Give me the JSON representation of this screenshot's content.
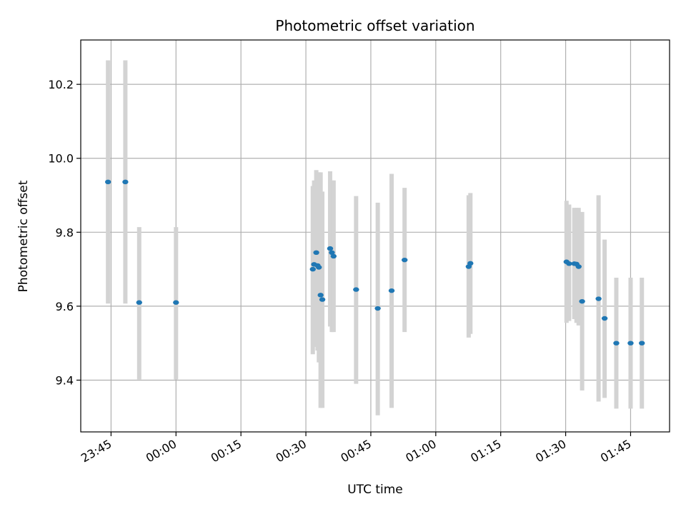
{
  "chart_data": {
    "type": "scatter",
    "title": "Photometric offset variation",
    "xlabel": "UTC time",
    "ylabel": "Photometric offset",
    "x_axis": {
      "unit": "minutes relative to 00:00 UTC",
      "range": [
        -22,
        114
      ],
      "ticks": [
        {
          "value": -15,
          "label": "23:45"
        },
        {
          "value": 0,
          "label": "00:00"
        },
        {
          "value": 15,
          "label": "00:15"
        },
        {
          "value": 30,
          "label": "00:30"
        },
        {
          "value": 45,
          "label": "00:45"
        },
        {
          "value": 60,
          "label": "01:00"
        },
        {
          "value": 75,
          "label": "01:15"
        },
        {
          "value": 90,
          "label": "01:30"
        },
        {
          "value": 105,
          "label": "01:45"
        }
      ]
    },
    "y_axis": {
      "range": [
        9.26,
        10.32
      ],
      "ticks": [
        {
          "value": 9.4,
          "label": "9.4"
        },
        {
          "value": 9.6,
          "label": "9.6"
        },
        {
          "value": 9.8,
          "label": "9.8"
        },
        {
          "value": 10.0,
          "label": "10.0"
        },
        {
          "value": 10.2,
          "label": "10.2"
        }
      ]
    },
    "grid": true,
    "point_color": "#1f77b4",
    "errorbar_color": "#d3d3d3",
    "points": [
      {
        "t": -15.7,
        "y": 9.936,
        "lo": 9.607,
        "hi": 10.265
      },
      {
        "t": -11.7,
        "y": 9.936,
        "lo": 9.607,
        "hi": 10.265
      },
      {
        "t": -8.5,
        "y": 9.61,
        "lo": 9.402,
        "hi": 9.814
      },
      {
        "t": 0.0,
        "y": 9.61,
        "lo": 9.402,
        "hi": 9.814
      },
      {
        "t": 31.6,
        "y": 9.7,
        "lo": 9.47,
        "hi": 9.925
      },
      {
        "t": 31.9,
        "y": 9.713,
        "lo": 9.49,
        "hi": 9.94
      },
      {
        "t": 32.4,
        "y": 9.745,
        "lo": 9.52,
        "hi": 9.968
      },
      {
        "t": 32.7,
        "y": 9.71,
        "lo": 9.48,
        "hi": 9.955
      },
      {
        "t": 33.0,
        "y": 9.705,
        "lo": 9.448,
        "hi": 9.962
      },
      {
        "t": 33.4,
        "y": 9.63,
        "lo": 9.325,
        "hi": 9.962
      },
      {
        "t": 33.8,
        "y": 9.618,
        "lo": 9.325,
        "hi": 9.91
      },
      {
        "t": 35.6,
        "y": 9.756,
        "lo": 9.545,
        "hi": 9.965
      },
      {
        "t": 36.0,
        "y": 9.745,
        "lo": 9.53,
        "hi": 9.94
      },
      {
        "t": 36.4,
        "y": 9.735,
        "lo": 9.53,
        "hi": 9.94
      },
      {
        "t": 41.6,
        "y": 9.645,
        "lo": 9.39,
        "hi": 9.898
      },
      {
        "t": 46.6,
        "y": 9.594,
        "lo": 9.305,
        "hi": 9.88
      },
      {
        "t": 49.8,
        "y": 9.642,
        "lo": 9.325,
        "hi": 9.958
      },
      {
        "t": 52.8,
        "y": 9.725,
        "lo": 9.53,
        "hi": 9.92
      },
      {
        "t": 67.6,
        "y": 9.707,
        "lo": 9.515,
        "hi": 9.9
      },
      {
        "t": 68.0,
        "y": 9.716,
        "lo": 9.525,
        "hi": 9.906
      },
      {
        "t": 90.2,
        "y": 9.72,
        "lo": 9.555,
        "hi": 9.885
      },
      {
        "t": 90.8,
        "y": 9.715,
        "lo": 9.56,
        "hi": 9.875
      },
      {
        "t": 92.0,
        "y": 9.715,
        "lo": 9.565,
        "hi": 9.866
      },
      {
        "t": 92.5,
        "y": 9.714,
        "lo": 9.555,
        "hi": 9.866
      },
      {
        "t": 93.0,
        "y": 9.707,
        "lo": 9.548,
        "hi": 9.866
      },
      {
        "t": 93.8,
        "y": 9.613,
        "lo": 9.372,
        "hi": 9.855
      },
      {
        "t": 97.6,
        "y": 9.62,
        "lo": 9.342,
        "hi": 9.9
      },
      {
        "t": 99.0,
        "y": 9.567,
        "lo": 9.352,
        "hi": 9.78
      },
      {
        "t": 101.7,
        "y": 9.5,
        "lo": 9.323,
        "hi": 9.677
      },
      {
        "t": 105.0,
        "y": 9.5,
        "lo": 9.323,
        "hi": 9.677
      },
      {
        "t": 107.6,
        "y": 9.5,
        "lo": 9.323,
        "hi": 9.677
      }
    ]
  }
}
